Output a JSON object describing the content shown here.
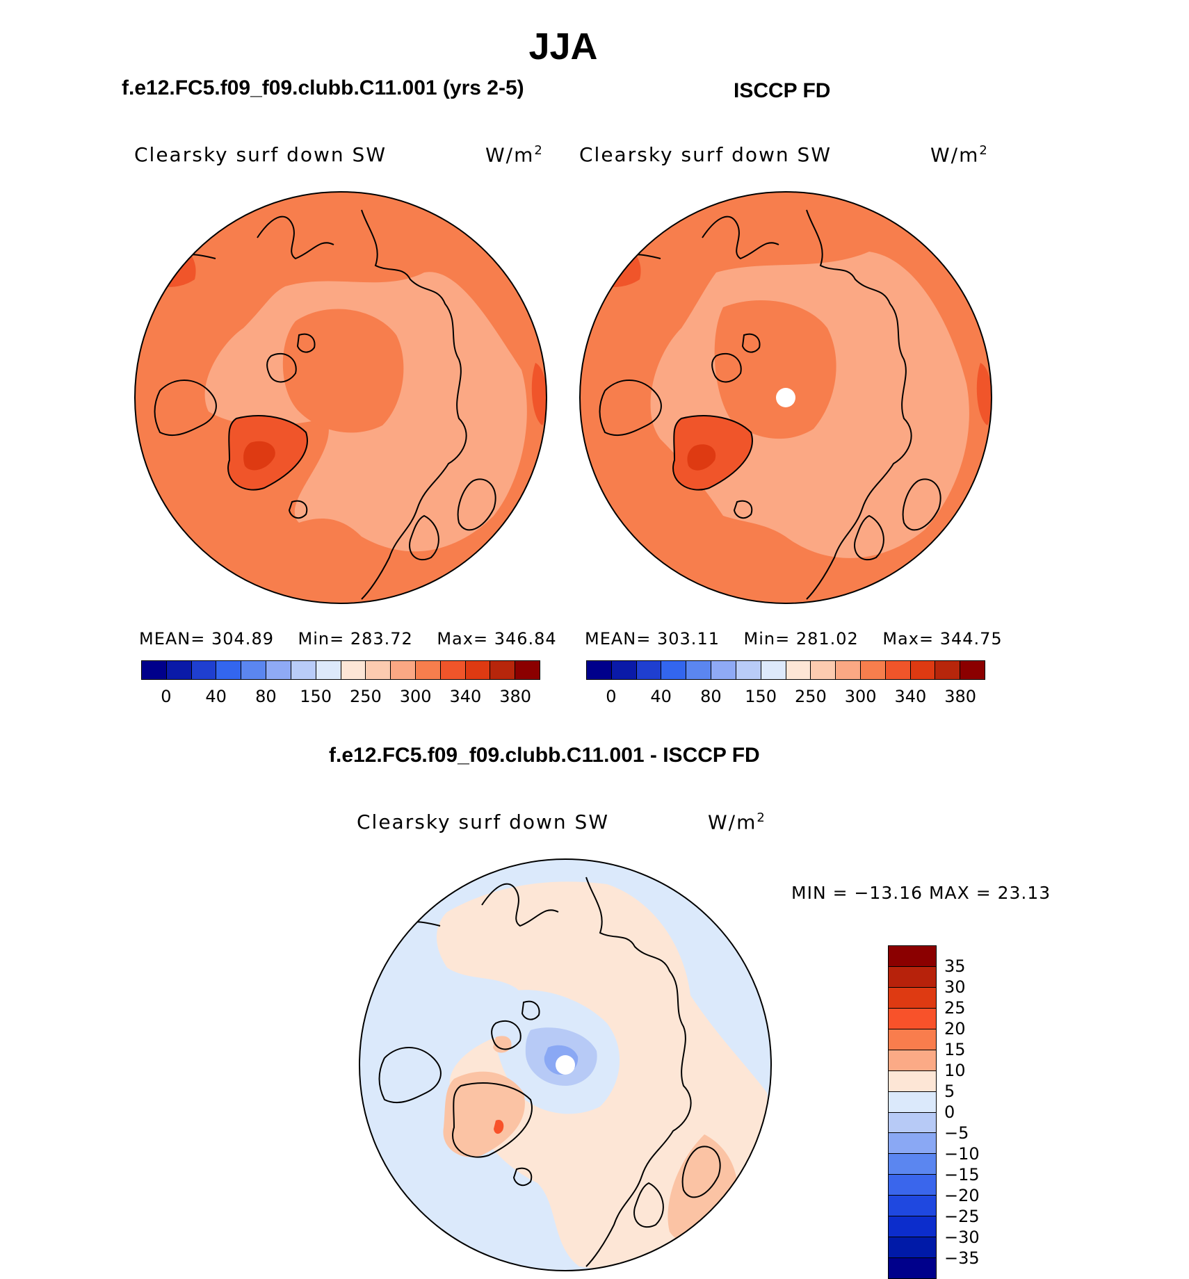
{
  "title": "JJA",
  "panels": [
    {
      "heading": "f.e12.FC5.f09_f09.clubb.C11.001 (yrs 2-5)",
      "label": "Clearsky surf down SW",
      "units_base": "W/m",
      "units_exp": "2",
      "mean_label": "MEAN=",
      "mean": "304.89",
      "min_label": "Min=",
      "min": "283.72",
      "max_label": "Max=",
      "max": "346.84",
      "has_pole_hole": false
    },
    {
      "heading": "ISCCP FD",
      "label": "Clearsky surf down SW",
      "units_base": "W/m",
      "units_exp": "2",
      "mean_label": "MEAN=",
      "mean": "303.11",
      "min_label": "Min=",
      "min": "281.02",
      "max_label": "Max=",
      "max": "344.75",
      "has_pole_hole": true
    }
  ],
  "abs_colorbar": {
    "colors": [
      "#00008b",
      "#0a1aa8",
      "#1f3fd0",
      "#3366ee",
      "#5b86f0",
      "#8faaf5",
      "#b9ccf8",
      "#dde9fb",
      "#fde6d6",
      "#fccbb0",
      "#fba884",
      "#f77e4d",
      "#f0552a",
      "#de3a12",
      "#b7260b",
      "#8b0000"
    ],
    "labels": [
      "0",
      "40",
      "80",
      "150",
      "250",
      "300",
      "340",
      "380"
    ]
  },
  "diff": {
    "heading": "f.e12.FC5.f09_f09.clubb.C11.001 - ISCCP FD",
    "label": "Clearsky surf down SW",
    "units_base": "W/m",
    "units_exp": "2",
    "minmax": "MIN = −13.16 MAX =  23.13",
    "colorbar": {
      "colors": [
        "#8b0000",
        "#b7220b",
        "#de3a12",
        "#f8522a",
        "#f97d4d",
        "#fbaa86",
        "#fde6d6",
        "#dbe9fb",
        "#b7caf6",
        "#8aa8f4",
        "#5b86f0",
        "#3a66ec",
        "#1f48e0",
        "#0c2dcc",
        "#001aa8",
        "#00008b"
      ],
      "labels": [
        "35",
        "30",
        "25",
        "20",
        "15",
        "10",
        "5",
        "0",
        "−5",
        "−10",
        "−15",
        "−20",
        "−25",
        "−30",
        "−35"
      ]
    }
  },
  "colors": {
    "field_base": "#f77e4d",
    "field_light": "#fba884",
    "field_dark": "#f0552a",
    "field_darker": "#de3a12",
    "diff_blue": "#dbe9fb",
    "diff_pink": "#fde6d6",
    "diff_salmon": "#fbc3a4",
    "diff_mid_blue": "#b7caf6",
    "diff_deep_blue": "#8aa8f4",
    "diff_red": "#f8522a"
  }
}
